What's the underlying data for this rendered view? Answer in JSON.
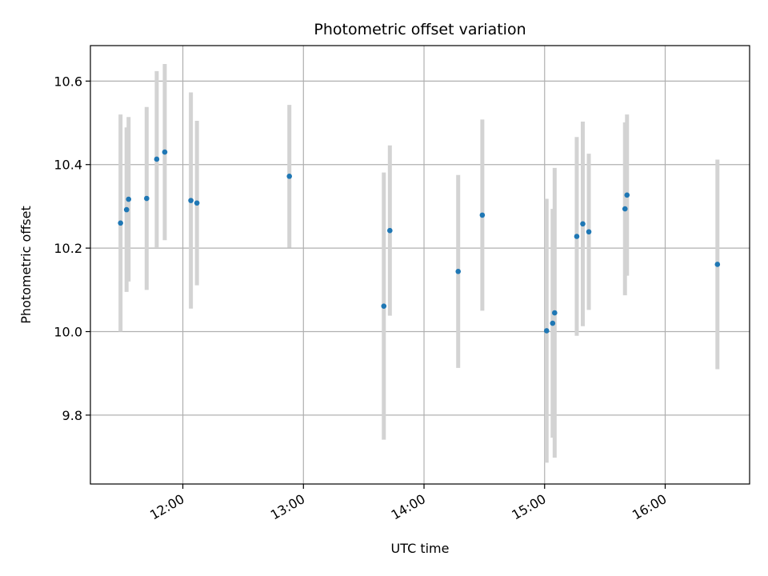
{
  "chart_data": {
    "type": "scatter",
    "title": "Photometric offset variation",
    "xlabel": "UTC time",
    "ylabel": "Photometric offset",
    "x_ticks": [
      "12:00",
      "13:00",
      "14:00",
      "15:00",
      "16:00"
    ],
    "y_ticks": [
      "9.8",
      "10.0",
      "10.2",
      "10.4",
      "10.6"
    ],
    "xlim": [
      "11:14",
      "16:42"
    ],
    "ylim": [
      9.635,
      10.685
    ],
    "grid": true,
    "marker_color": "#1f77b4",
    "errorbar_color": "#d3d3d3",
    "points": [
      {
        "x": "11:29",
        "y": 10.26,
        "err": 0.26
      },
      {
        "x": "11:32",
        "y": 10.292,
        "err": 0.197
      },
      {
        "x": "11:33",
        "y": 10.317,
        "err": 0.197
      },
      {
        "x": "11:42",
        "y": 10.319,
        "err": 0.219
      },
      {
        "x": "11:47",
        "y": 10.413,
        "err": 0.211
      },
      {
        "x": "11:51",
        "y": 10.43,
        "err": 0.211
      },
      {
        "x": "12:04",
        "y": 10.314,
        "err": 0.259
      },
      {
        "x": "12:07",
        "y": 10.308,
        "err": 0.197
      },
      {
        "x": "12:53",
        "y": 10.372,
        "err": 0.171
      },
      {
        "x": "13:40",
        "y": 10.061,
        "err": 0.32
      },
      {
        "x": "13:43",
        "y": 10.242,
        "err": 0.204
      },
      {
        "x": "14:17",
        "y": 10.144,
        "err": 0.231
      },
      {
        "x": "14:29",
        "y": 10.279,
        "err": 0.229
      },
      {
        "x": "15:01",
        "y": 10.002,
        "err": 0.316
      },
      {
        "x": "15:04",
        "y": 10.02,
        "err": 0.274
      },
      {
        "x": "15:05",
        "y": 10.045,
        "err": 0.347
      },
      {
        "x": "15:16",
        "y": 10.228,
        "err": 0.238
      },
      {
        "x": "15:19",
        "y": 10.258,
        "err": 0.245
      },
      {
        "x": "15:22",
        "y": 10.239,
        "err": 0.187
      },
      {
        "x": "15:40",
        "y": 10.294,
        "err": 0.207
      },
      {
        "x": "15:41",
        "y": 10.327,
        "err": 0.193
      },
      {
        "x": "16:26",
        "y": 10.161,
        "err": 0.251
      }
    ]
  }
}
